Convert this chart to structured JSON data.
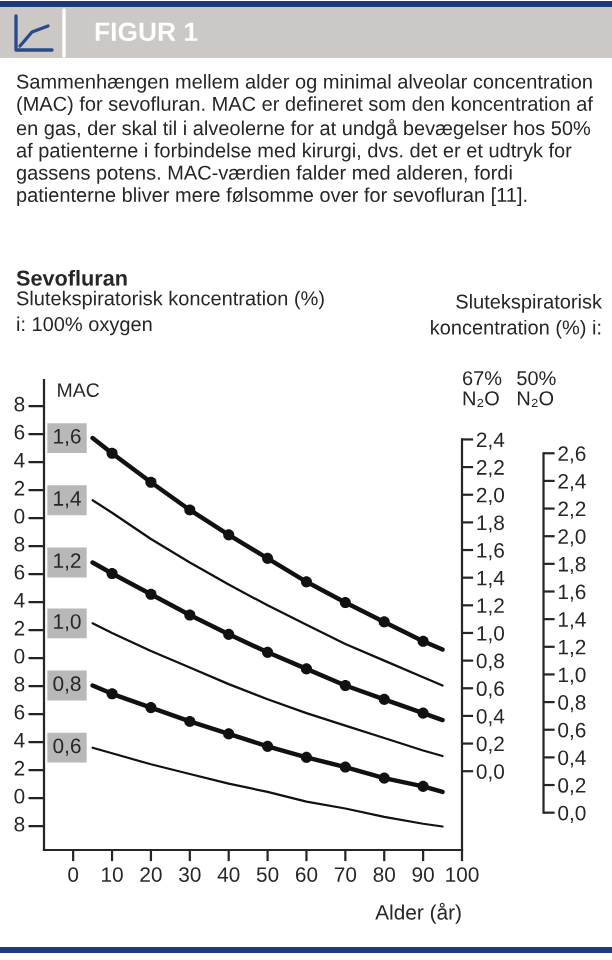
{
  "chart_data": {
    "type": "line",
    "title": "FIGUR 1",
    "subtitle": "Sammenhængen mellem alder og minimal alveolar concentration (MAC) for sevofluran. MAC er defineret som den koncentration af en gas, der skal til i alveolerne for at undgå bevægelser hos 50% af patienterne i forbindelse med kirurgi, dvs. det er et udtryk for gassens potens. MAC-værdien falder med alderen, fordi patienterne bliver mere følsomme over for sevofluran [11].",
    "annotations": [
      "Sevofluran",
      "MAC",
      "Slutekspiratorisk\nkoncentration (%) i:",
      "8",
      "0",
      "2",
      "4",
      "6",
      "8",
      "0",
      "2",
      "4",
      "6",
      "8",
      "0",
      "2",
      "4",
      "6",
      "8"
    ],
    "ylabel": "Slutekspiratorisk koncentration (%)\ni: 100% oxygen",
    "y2label": "67%\nN₂O",
    "y3label": "50%\nN₂O",
    "xlabel": "Alder (år)",
    "x": [
      5,
      10,
      20,
      30,
      40,
      50,
      60,
      70,
      80,
      90,
      95
    ],
    "series": [
      {
        "name": "1,6",
        "color": "#111111",
        "marker": "circle",
        "axis": "y2",
        "values": [
          2.41,
          2.3,
          2.09,
          1.89,
          1.71,
          1.54,
          1.37,
          1.22,
          1.08,
          0.94,
          0.88
        ]
      },
      {
        "name": "1,4",
        "color": "#111111",
        "marker": "none",
        "axis": "y2",
        "values": [
          1.96,
          1.87,
          1.68,
          1.51,
          1.35,
          1.2,
          1.06,
          0.92,
          0.8,
          0.68,
          0.62
        ]
      },
      {
        "name": "1,2",
        "color": "#111111",
        "marker": "circle",
        "axis": "y2",
        "values": [
          1.51,
          1.43,
          1.28,
          1.13,
          0.99,
          0.86,
          0.74,
          0.62,
          0.52,
          0.42,
          0.37
        ]
      },
      {
        "name": "1,0",
        "color": "#111111",
        "marker": "none",
        "axis": "y2",
        "values": [
          1.07,
          1.0,
          0.87,
          0.75,
          0.63,
          0.52,
          0.42,
          0.33,
          0.24,
          0.15,
          0.11
        ]
      },
      {
        "name": "0,8",
        "color": "#111111",
        "marker": "circle",
        "axis": "y2",
        "values": [
          0.62,
          0.56,
          0.46,
          0.36,
          0.27,
          0.18,
          0.1,
          0.03,
          -0.05,
          -0.11,
          -0.15
        ]
      },
      {
        "name": "0,6",
        "color": "#111111",
        "marker": "none",
        "axis": "y2",
        "values": [
          0.17,
          0.13,
          0.05,
          -0.02,
          -0.09,
          -0.15,
          -0.22,
          -0.27,
          -0.33,
          -0.38,
          -0.4
        ]
      }
    ],
    "xlim": [
      -7.5,
      100
    ],
    "xticks": [
      0,
      10,
      20,
      30,
      40,
      50,
      60,
      70,
      80,
      90,
      100
    ],
    "y2lim": [
      -0.57,
      2.83
    ],
    "y2ticks": [
      {
        "value": 0.0,
        "label": "0,0"
      },
      {
        "value": 0.2,
        "label": "0,2"
      },
      {
        "value": 0.4,
        "label": "0,4"
      },
      {
        "value": 0.6,
        "label": "0,6"
      },
      {
        "value": 0.8,
        "label": "0,8"
      },
      {
        "value": 1.0,
        "label": "1,0"
      },
      {
        "value": 1.2,
        "label": "1,2"
      },
      {
        "value": 1.4,
        "label": "1,4"
      },
      {
        "value": 1.6,
        "label": "1,6"
      },
      {
        "value": 1.8,
        "label": "1,8"
      },
      {
        "value": 2.0,
        "label": "2,0"
      },
      {
        "value": 2.2,
        "label": "2,2"
      },
      {
        "value": 2.4,
        "label": "2,4"
      }
    ],
    "y3lim": [
      -0.27,
      3.13
    ],
    "y3ticks": [
      {
        "value": 0.0,
        "label": "0,0"
      },
      {
        "value": 0.2,
        "label": "0,2"
      },
      {
        "value": 0.4,
        "label": "0,4"
      },
      {
        "value": 0.6,
        "label": "0,6"
      },
      {
        "value": 0.8,
        "label": "0,8"
      },
      {
        "value": 1.0,
        "label": "1,0"
      },
      {
        "value": 1.2,
        "label": "1,2"
      },
      {
        "value": 1.4,
        "label": "1,4"
      },
      {
        "value": 1.6,
        "label": "1,6"
      },
      {
        "value": 1.8,
        "label": "1,8"
      },
      {
        "value": 2.0,
        "label": "2,0"
      },
      {
        "value": 2.2,
        "label": "2,2"
      },
      {
        "value": 2.4,
        "label": "2,4"
      },
      {
        "value": 2.6,
        "label": "2,6"
      }
    ],
    "grid": false
  }
}
